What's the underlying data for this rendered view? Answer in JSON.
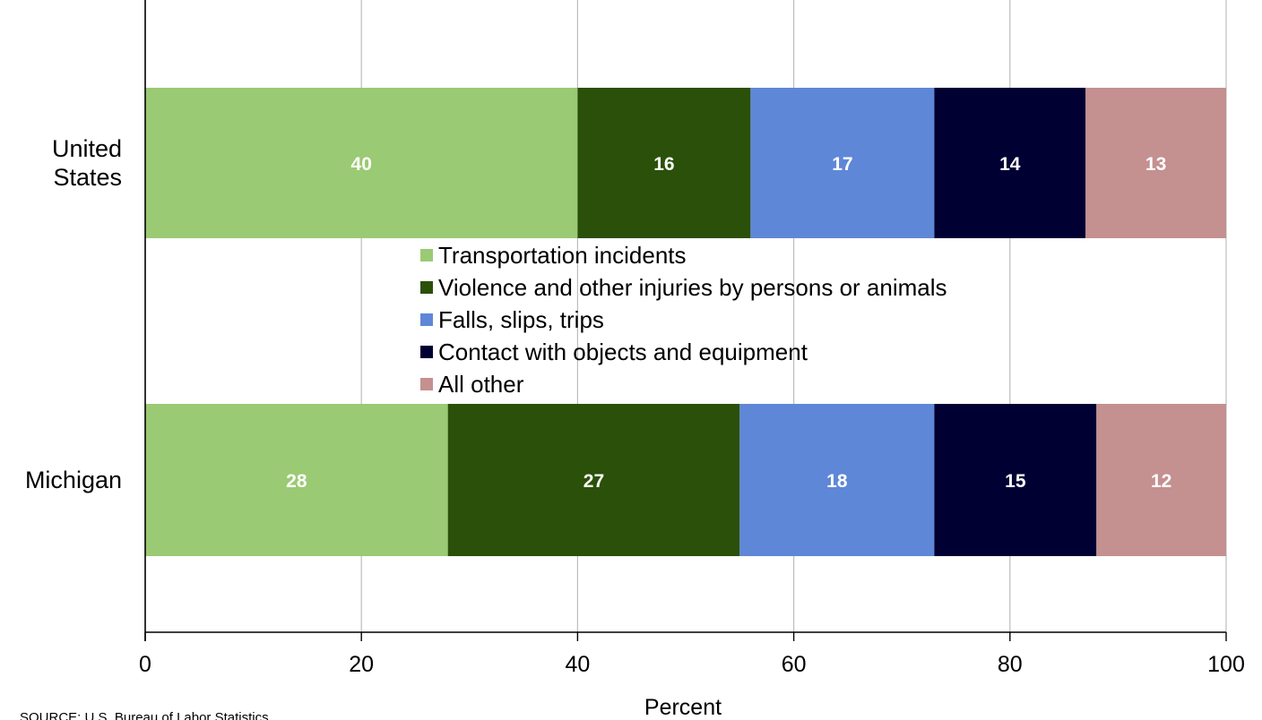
{
  "chart_data": {
    "type": "bar",
    "orientation": "horizontal",
    "stacked": true,
    "categories": [
      "United States",
      "Michigan"
    ],
    "category_lines": [
      [
        "United",
        "States"
      ],
      [
        "Michigan"
      ]
    ],
    "series": [
      {
        "name": "Transportation incidents",
        "values": [
          40,
          28
        ],
        "color": "#9ACA73",
        "label_color": "#FFFFFF"
      },
      {
        "name": "Violence and other injuries by persons or animals",
        "values": [
          16,
          27
        ],
        "color": "#2B500A",
        "label_color": "#FFFFFF"
      },
      {
        "name": "Falls, slips, trips",
        "values": [
          17,
          18
        ],
        "color": "#5F87D7",
        "label_color": "#FFFFFF"
      },
      {
        "name": "Contact with objects and equipment",
        "values": [
          14,
          15
        ],
        "color": "#000033",
        "label_color": "#FFFFFF"
      },
      {
        "name": "All other",
        "values": [
          13,
          12
        ],
        "color": "#C49090",
        "label_color": "#FFFFFF"
      }
    ],
    "xlim": [
      0,
      100
    ],
    "xticks": [
      0,
      20,
      40,
      60,
      80,
      100
    ],
    "xlabel": "Percent",
    "ylabel": "",
    "grid": true,
    "legend_position": "center",
    "source": "SOURCE: U.S. Bureau of Labor Statistics"
  }
}
